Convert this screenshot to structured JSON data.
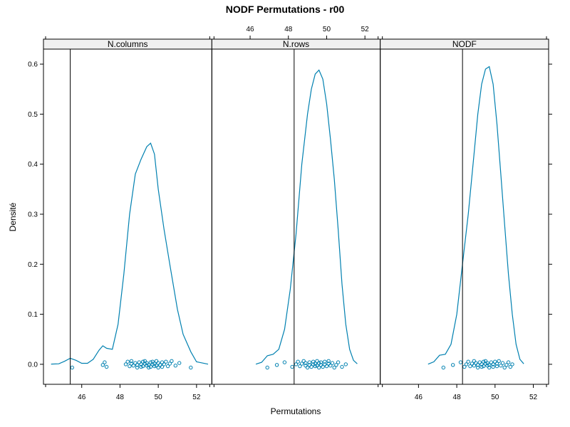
{
  "chart_data": {
    "type": "line",
    "title": "NODF Permutations - r00",
    "xlabel": "Permutations",
    "ylabel": "Densité",
    "xlim": [
      44.0,
      52.8
    ],
    "ylim": [
      -0.04,
      0.63
    ],
    "x_ticks": [
      46,
      48,
      50,
      52
    ],
    "y_ticks": [
      0.0,
      0.1,
      0.2,
      0.3,
      0.4,
      0.5,
      0.6
    ],
    "colors": {
      "density": "#0080b0",
      "points": "#0080b0",
      "strip_bg": "#f0f0f0",
      "observed_line": "#000000"
    },
    "panels": [
      {
        "name": "N.columns",
        "observed": 45.4,
        "density": [
          [
            44.4,
            0.0004
          ],
          [
            44.8,
            0.001
          ],
          [
            45.1,
            0.006
          ],
          [
            45.4,
            0.012
          ],
          [
            45.7,
            0.008
          ],
          [
            46.0,
            0.002
          ],
          [
            46.3,
            0.002
          ],
          [
            46.6,
            0.01
          ],
          [
            46.9,
            0.028
          ],
          [
            47.1,
            0.037
          ],
          [
            47.3,
            0.032
          ],
          [
            47.6,
            0.03
          ],
          [
            47.9,
            0.08
          ],
          [
            48.2,
            0.18
          ],
          [
            48.5,
            0.3
          ],
          [
            48.8,
            0.38
          ],
          [
            49.1,
            0.41
          ],
          [
            49.4,
            0.435
          ],
          [
            49.6,
            0.442
          ],
          [
            49.8,
            0.42
          ],
          [
            50.0,
            0.35
          ],
          [
            50.3,
            0.27
          ],
          [
            50.6,
            0.2
          ],
          [
            51.0,
            0.11
          ],
          [
            51.3,
            0.06
          ],
          [
            51.7,
            0.025
          ],
          [
            52.0,
            0.005
          ],
          [
            52.6,
            0.0002
          ]
        ],
        "points": [
          45.5,
          47.1,
          47.2,
          47.3,
          48.3,
          48.4,
          48.5,
          48.6,
          48.6,
          48.7,
          48.8,
          48.9,
          48.9,
          49.0,
          49.1,
          49.1,
          49.2,
          49.2,
          49.3,
          49.3,
          49.4,
          49.4,
          49.5,
          49.5,
          49.6,
          49.6,
          49.7,
          49.7,
          49.8,
          49.8,
          49.9,
          49.9,
          50.0,
          50.0,
          50.1,
          50.2,
          50.2,
          50.3,
          50.4,
          50.5,
          50.6,
          50.7,
          50.9,
          51.1,
          51.7
        ]
      },
      {
        "name": "N.rows",
        "observed": 48.3,
        "density": [
          [
            46.3,
            0.0003
          ],
          [
            46.6,
            0.004
          ],
          [
            46.9,
            0.017
          ],
          [
            47.2,
            0.02
          ],
          [
            47.5,
            0.03
          ],
          [
            47.8,
            0.07
          ],
          [
            48.1,
            0.15
          ],
          [
            48.4,
            0.26
          ],
          [
            48.7,
            0.4
          ],
          [
            49.0,
            0.5
          ],
          [
            49.2,
            0.55
          ],
          [
            49.4,
            0.58
          ],
          [
            49.6,
            0.588
          ],
          [
            49.8,
            0.57
          ],
          [
            50.0,
            0.52
          ],
          [
            50.2,
            0.45
          ],
          [
            50.4,
            0.37
          ],
          [
            50.6,
            0.27
          ],
          [
            50.8,
            0.16
          ],
          [
            51.0,
            0.08
          ],
          [
            51.2,
            0.03
          ],
          [
            51.4,
            0.008
          ],
          [
            51.6,
            0.001
          ]
        ],
        "points": [
          46.9,
          47.4,
          47.8,
          48.2,
          48.4,
          48.5,
          48.6,
          48.7,
          48.8,
          48.9,
          48.9,
          49.0,
          49.1,
          49.1,
          49.2,
          49.3,
          49.3,
          49.4,
          49.4,
          49.5,
          49.5,
          49.6,
          49.6,
          49.7,
          49.7,
          49.8,
          49.9,
          49.9,
          50.0,
          50.1,
          50.1,
          50.2,
          50.3,
          50.4,
          50.5,
          50.6,
          50.8,
          51.0
        ]
      },
      {
        "name": "NODF",
        "observed": 48.3,
        "density": [
          [
            46.5,
            0.0003
          ],
          [
            46.8,
            0.005
          ],
          [
            47.1,
            0.018
          ],
          [
            47.4,
            0.02
          ],
          [
            47.7,
            0.04
          ],
          [
            48.0,
            0.1
          ],
          [
            48.3,
            0.2
          ],
          [
            48.6,
            0.3
          ],
          [
            48.9,
            0.42
          ],
          [
            49.1,
            0.5
          ],
          [
            49.3,
            0.56
          ],
          [
            49.5,
            0.59
          ],
          [
            49.7,
            0.595
          ],
          [
            49.9,
            0.56
          ],
          [
            50.1,
            0.48
          ],
          [
            50.3,
            0.38
          ],
          [
            50.5,
            0.28
          ],
          [
            50.7,
            0.18
          ],
          [
            50.9,
            0.1
          ],
          [
            51.1,
            0.04
          ],
          [
            51.3,
            0.01
          ],
          [
            51.5,
            0.001
          ]
        ],
        "points": [
          47.3,
          47.8,
          48.2,
          48.4,
          48.5,
          48.6,
          48.7,
          48.8,
          48.9,
          48.9,
          49.0,
          49.1,
          49.1,
          49.2,
          49.3,
          49.3,
          49.4,
          49.4,
          49.5,
          49.5,
          49.6,
          49.6,
          49.7,
          49.7,
          49.8,
          49.9,
          49.9,
          50.0,
          50.1,
          50.1,
          50.2,
          50.3,
          50.4,
          50.5,
          50.6,
          50.7,
          50.8,
          50.9
        ]
      }
    ]
  }
}
